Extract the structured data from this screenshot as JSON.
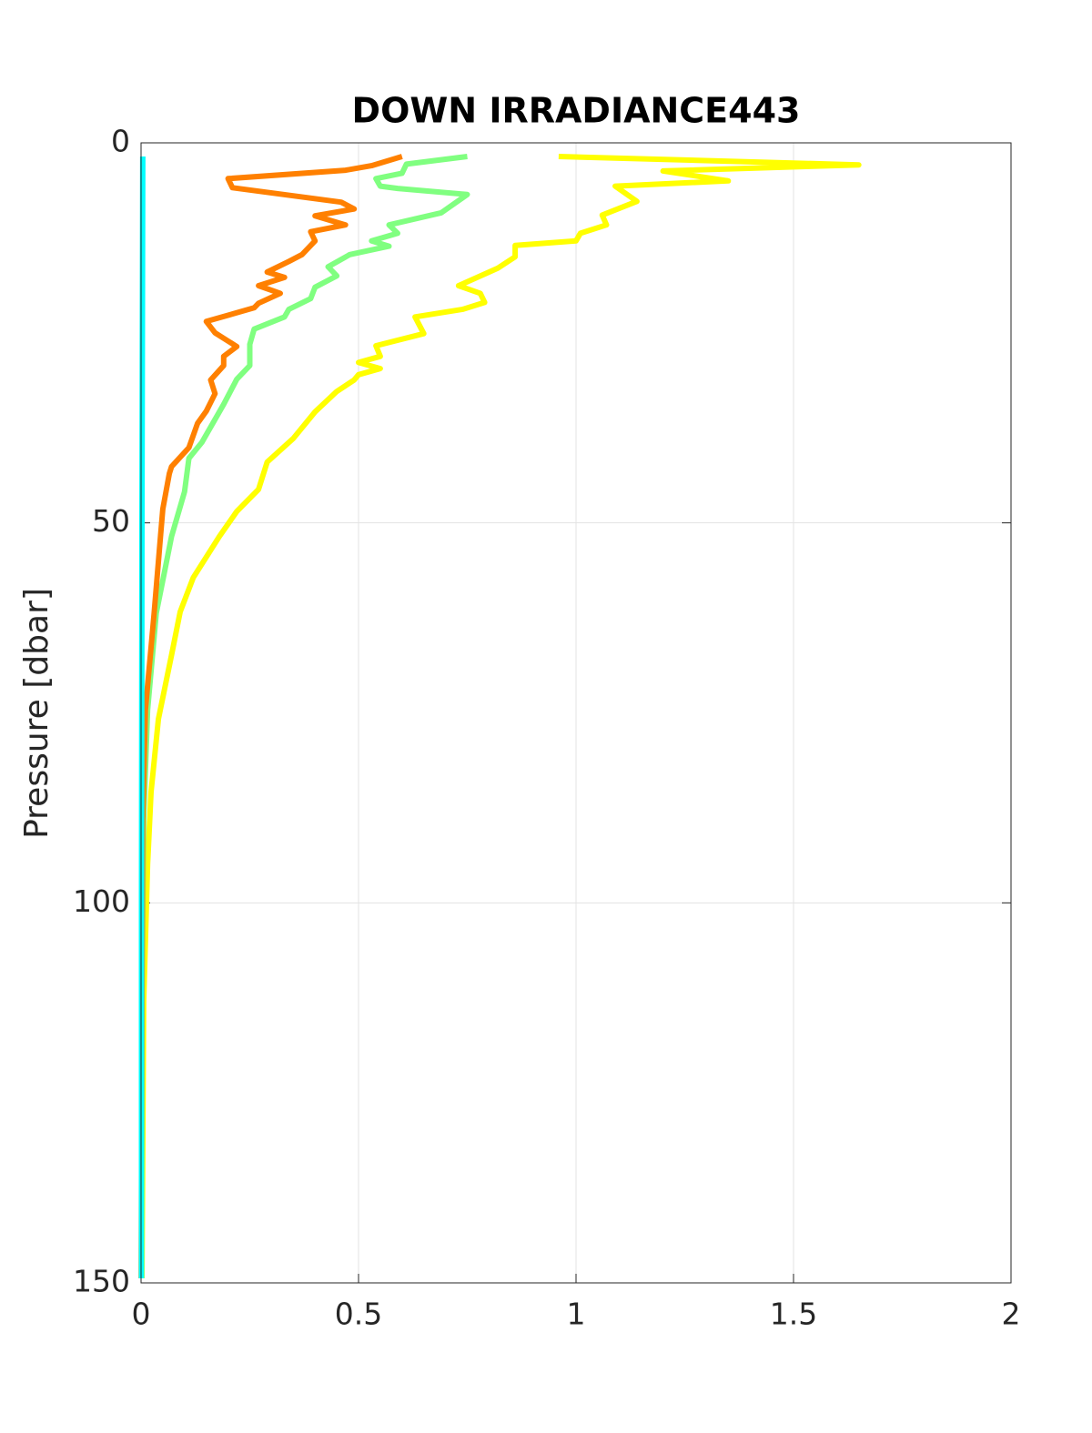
{
  "chart_data": {
    "type": "line",
    "title": "DOWN IRRADIANCE443",
    "ylabel": "Pressure [dbar]",
    "xlim": [
      0,
      2
    ],
    "xticks": [
      0,
      0.5,
      1,
      1.5,
      2
    ],
    "ylim": [
      0,
      150
    ],
    "yticks": [
      0,
      50,
      100,
      150
    ],
    "y_reversed": true,
    "grid": true,
    "series": [
      {
        "color": "#ffff00",
        "x": [
          0.96,
          1.65,
          1.2,
          1.35,
          1.09,
          1.14,
          1.06,
          1.07,
          1.01,
          1.0,
          0.86,
          0.86,
          0.82,
          0.73,
          0.78,
          0.79,
          0.74,
          0.63,
          0.65,
          0.54,
          0.55,
          0.5,
          0.55,
          0.5,
          0.49,
          0.45,
          0.4,
          0.35,
          0.29,
          0.27,
          0.22,
          0.18,
          0.12,
          0.09,
          0.07,
          0.04,
          0.023,
          0.015,
          0.006,
          0.002
        ],
        "values": [
          1.8,
          2.9,
          3.7,
          5.0,
          5.7,
          7.7,
          9.5,
          10.8,
          11.9,
          12.9,
          13.5,
          15.0,
          16.5,
          18.8,
          19.8,
          21.0,
          21.9,
          22.9,
          25.1,
          26.7,
          28.1,
          28.9,
          29.7,
          30.5,
          31.2,
          32.7,
          35.4,
          38.9,
          42.0,
          45.6,
          48.5,
          51.8,
          57.2,
          61.7,
          67.4,
          75.8,
          85.4,
          94.9,
          113,
          149.4
        ]
      },
      {
        "color": "#80ff80",
        "x": [
          0.75,
          0.61,
          0.6,
          0.54,
          0.55,
          0.59,
          0.75,
          0.69,
          0.57,
          0.59,
          0.53,
          0.57,
          0.48,
          0.43,
          0.45,
          0.4,
          0.39,
          0.34,
          0.33,
          0.26,
          0.25,
          0.25,
          0.22,
          0.19,
          0.14,
          0.11,
          0.1,
          0.07,
          0.035,
          0.015,
          0.006,
          0.002,
          0.0008
        ],
        "values": [
          1.8,
          2.8,
          4.0,
          4.7,
          5.7,
          6.0,
          6.8,
          9.2,
          10.8,
          11.9,
          12.9,
          13.6,
          14.7,
          16.3,
          17.5,
          19.0,
          20.5,
          21.9,
          22.9,
          24.5,
          26.5,
          29.3,
          31.1,
          34.4,
          39.4,
          41.5,
          45.9,
          51.8,
          61.9,
          74.6,
          89,
          113,
          149.4
        ]
      },
      {
        "color": "#ff8000",
        "x": [
          0.6,
          0.53,
          0.47,
          0.2,
          0.21,
          0.46,
          0.49,
          0.4,
          0.47,
          0.39,
          0.4,
          0.37,
          0.34,
          0.29,
          0.33,
          0.27,
          0.32,
          0.27,
          0.26,
          0.15,
          0.17,
          0.22,
          0.19,
          0.19,
          0.16,
          0.17,
          0.15,
          0.13,
          0.11,
          0.07,
          0.065,
          0.05,
          0.045,
          0.03,
          0.01,
          0.004,
          0.002,
          0.0005
        ],
        "values": [
          1.8,
          3.0,
          3.6,
          4.7,
          5.9,
          7.8,
          8.7,
          9.6,
          10.8,
          11.7,
          12.9,
          14.7,
          15.6,
          17.0,
          17.7,
          18.8,
          19.8,
          21.1,
          21.7,
          23.5,
          25.0,
          26.8,
          28.1,
          29.3,
          31.2,
          33.0,
          35.3,
          36.9,
          40.1,
          42.6,
          43.5,
          48.2,
          51.6,
          62.0,
          74.6,
          89,
          113,
          149.4
        ]
      },
      {
        "color": "#00ffff",
        "x": [
          0.004,
          0.002,
          0.001,
          0.001
        ],
        "values": [
          1.8,
          50,
          100,
          149.4
        ]
      }
    ]
  }
}
